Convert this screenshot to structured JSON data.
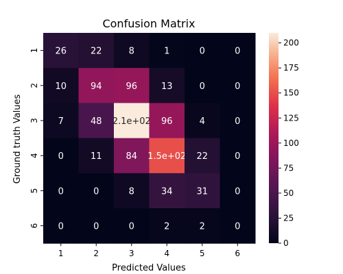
{
  "chart_data": {
    "type": "heatmap",
    "title": "Confusion Matrix",
    "xlabel": "Predicted Values",
    "ylabel": "Ground truth Values",
    "x_categories": [
      "1",
      "2",
      "3",
      "4",
      "5",
      "6"
    ],
    "y_categories": [
      "1",
      "2",
      "3",
      "4",
      "5",
      "6"
    ],
    "values": [
      [
        26,
        22,
        8,
        1,
        0,
        0
      ],
      [
        10,
        94,
        96,
        13,
        0,
        0
      ],
      [
        7,
        48,
        210,
        96,
        4,
        0
      ],
      [
        0,
        11,
        84,
        150,
        22,
        0
      ],
      [
        0,
        0,
        8,
        34,
        31,
        0
      ],
      [
        0,
        0,
        0,
        2,
        2,
        0
      ]
    ],
    "cell_labels": [
      [
        "26",
        "22",
        "8",
        "1",
        "0",
        "0"
      ],
      [
        "10",
        "94",
        "96",
        "13",
        "0",
        "0"
      ],
      [
        "7",
        "48",
        "2.1e+02",
        "96",
        "4",
        "0"
      ],
      [
        "0",
        "11",
        "84",
        "1.5e+02",
        "22",
        "0"
      ],
      [
        "0",
        "0",
        "8",
        "34",
        "31",
        "0"
      ],
      [
        "0",
        "0",
        "0",
        "2",
        "2",
        "0"
      ]
    ],
    "colorbar": {
      "range": [
        0,
        210
      ],
      "ticks": [
        0,
        25,
        50,
        75,
        100,
        125,
        150,
        175,
        200
      ],
      "colormap": "rocket"
    },
    "grid": false
  }
}
